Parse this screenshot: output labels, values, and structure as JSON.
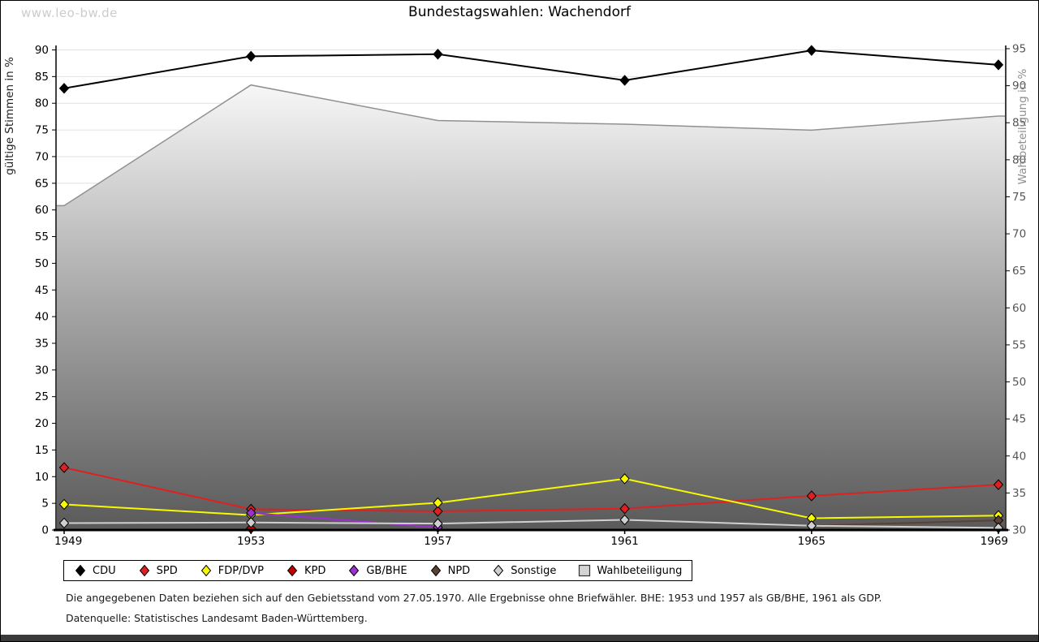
{
  "page": {
    "watermark": "www.leo-bw.de",
    "title": "Bundestagswahlen: Wachendorf",
    "footnote_line1": "Die angegebenen Daten beziehen sich auf den Gebietsstand vom 27.05.1970. Alle Ergebnisse ohne Briefwähler. BHE: 1953 und 1957 als GB/BHE, 1961 als GDP.",
    "footnote_line2": "Datenquelle: Statistisches Landesamt Baden-Württemberg."
  },
  "legend": {
    "items": [
      {
        "label": "CDU",
        "marker": "diamond",
        "color": "#000000"
      },
      {
        "label": "SPD",
        "marker": "diamond",
        "color": "#e02020"
      },
      {
        "label": "FDP/DVP",
        "marker": "diamond",
        "color": "#f8f800"
      },
      {
        "label": "KPD",
        "marker": "diamond",
        "color": "#c00000"
      },
      {
        "label": "GB/BHE",
        "marker": "diamond",
        "color": "#9b30d0"
      },
      {
        "label": "NPD",
        "marker": "diamond",
        "color": "#5c4033"
      },
      {
        "label": "Sonstige",
        "marker": "diamond",
        "color": "#cfcfcf"
      },
      {
        "label": "Wahlbeteiligung",
        "marker": "square",
        "color": "#d4d4d4"
      }
    ]
  },
  "chart_data": {
    "type": "line",
    "title": "Bundestagswahlen: Wachendorf",
    "x": [
      "1949",
      "1953",
      "1957",
      "1961",
      "1965",
      "1969"
    ],
    "left_axis": {
      "label": "gültige Stimmen in %",
      "min": 0,
      "max": 90,
      "step": 5
    },
    "right_axis": {
      "label": "Wahlbeteiligung in %",
      "min": 30,
      "max": 95,
      "step": 5
    },
    "grid": true,
    "legend_position": "bottom",
    "area_series": {
      "name": "Wahlbeteiligung",
      "axis": "right",
      "values": [
        73.8,
        90.1,
        85.3,
        84.8,
        84.0,
        85.9
      ],
      "fill_top": "#f7f7f7",
      "fill_mid": "#a5a5a5",
      "fill_bottom": "#5a5a5a",
      "stroke": "#909090"
    },
    "series": [
      {
        "name": "CDU",
        "color": "#000000",
        "values": [
          82.8,
          88.8,
          89.2,
          84.3,
          89.9,
          87.2
        ]
      },
      {
        "name": "SPD",
        "color": "#e02020",
        "values": [
          11.7,
          3.9,
          3.5,
          4.0,
          6.4,
          8.5
        ]
      },
      {
        "name": "FDP/DVP",
        "color": "#f8f800",
        "values": [
          4.8,
          2.8,
          5.1,
          9.6,
          2.2,
          2.7
        ]
      },
      {
        "name": "KPD",
        "color": "#c00000",
        "values": [
          null,
          0.3,
          null,
          null,
          null,
          null
        ]
      },
      {
        "name": "GB/BHE",
        "color": "#9b30d0",
        "values": [
          null,
          3.2,
          0.5,
          null,
          null,
          null
        ]
      },
      {
        "name": "NPD",
        "color": "#5c4033",
        "values": [
          null,
          null,
          null,
          null,
          0.8,
          1.8
        ]
      },
      {
        "name": "Sonstige",
        "color": "#cfcfcf",
        "values": [
          1.3,
          1.4,
          1.2,
          1.9,
          0.8,
          0.4
        ]
      }
    ]
  }
}
